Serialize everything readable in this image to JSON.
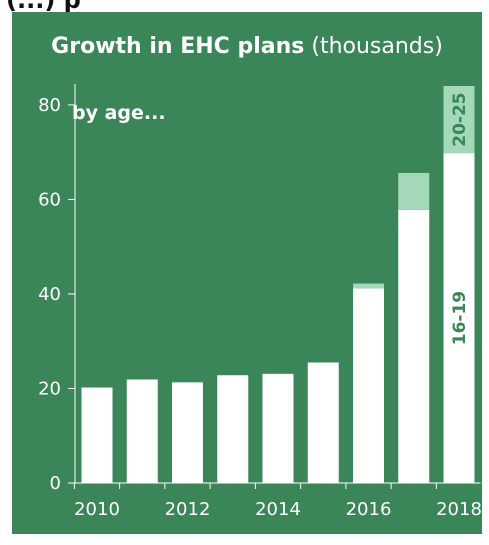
{
  "header": {
    "text": "(...) p"
  },
  "chart_data": {
    "type": "bar",
    "stacked": true,
    "title": "Growth in EHC plans",
    "title_suffix": "(thousands)",
    "subtitle": "by age...",
    "x": [
      2010,
      2011,
      2012,
      2013,
      2014,
      2015,
      2016,
      2017,
      2018
    ],
    "x_tick_labels": [
      "2010",
      "2012",
      "2014",
      "2016",
      "2018"
    ],
    "y_ticks": [
      0,
      20,
      40,
      60,
      80
    ],
    "ylim": [
      0,
      84
    ],
    "grid": false,
    "series": [
      {
        "name": "16-19",
        "color": "#ffffff",
        "values": [
          20.2,
          21.9,
          21.3,
          22.8,
          23.1,
          25.5,
          41.2,
          57.8,
          69.8
        ]
      },
      {
        "name": "20-25",
        "color": "#a3d9b8",
        "values": [
          0,
          0,
          0,
          0,
          0,
          0,
          1.0,
          7.8,
          14.2
        ]
      }
    ],
    "background_color": "#3a8659"
  }
}
